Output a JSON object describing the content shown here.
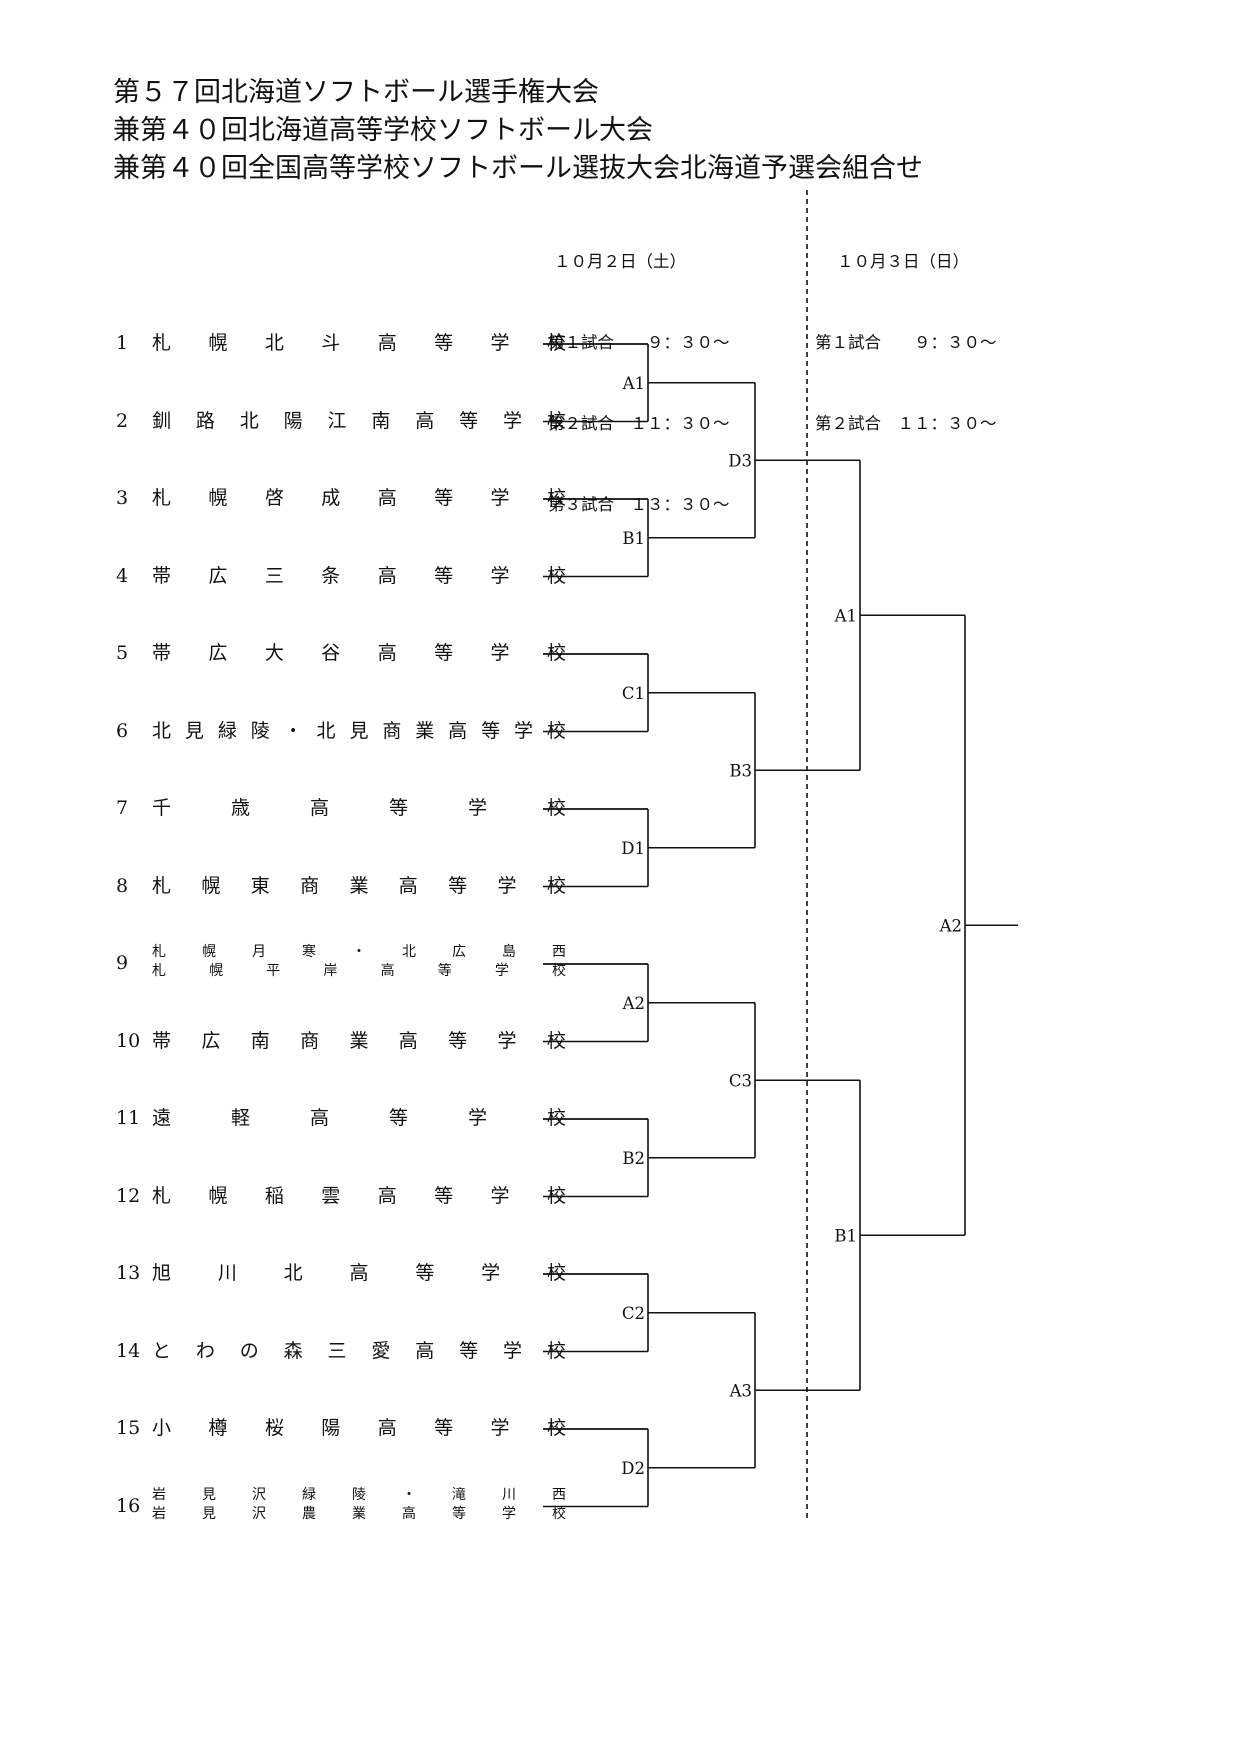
{
  "titles": [
    "第５７回北海道ソフトボール選手権大会",
    "兼第４０回北海道高等学校ソフトボール大会",
    "兼第４０回全国高等学校ソフトボール選抜大会北海道予選会組合せ"
  ],
  "schedule": {
    "day1": {
      "date": "１０月２日（土）",
      "games": [
        "第１試合　　９：３０〜",
        "第２試合　１１：３０〜",
        "第３試合　１３：３０〜"
      ]
    },
    "day2": {
      "date": "１０月３日（日）",
      "games": [
        "第１試合　　９：３０〜",
        "第２試合　１１：３０〜"
      ]
    }
  },
  "teams": [
    {
      "no": "1",
      "name": "札幌北斗高等学校"
    },
    {
      "no": "2",
      "name": "釧路北陽江南高等学校"
    },
    {
      "no": "3",
      "name": "札幌啓成高等学校"
    },
    {
      "no": "4",
      "name": "帯広三条高等学校"
    },
    {
      "no": "5",
      "name": "帯広大谷高等学校"
    },
    {
      "no": "6",
      "name": "北見緑陵・北見商業高等学校"
    },
    {
      "no": "7",
      "name": "千歳高等学校"
    },
    {
      "no": "8",
      "name": "札幌東商業高等学校"
    },
    {
      "no": "9",
      "name_lines": [
        "札幌月寒・北広島西",
        "札幌平岸高等学校"
      ]
    },
    {
      "no": "10",
      "name": "帯広南商業高等学校"
    },
    {
      "no": "11",
      "name": "遠軽高等学校"
    },
    {
      "no": "12",
      "name": "札幌稲雲高等学校"
    },
    {
      "no": "13",
      "name": "旭川北高等学校"
    },
    {
      "no": "14",
      "name": "とわの森三愛高等学校"
    },
    {
      "no": "15",
      "name": "小樽桜陽高等学校"
    },
    {
      "no": "16",
      "name_lines": [
        "岩見沢緑陵・滝川西",
        "岩見沢農業高等学校"
      ]
    }
  ],
  "matches": {
    "round1": [
      "A1",
      "B1",
      "C1",
      "D1",
      "A2",
      "B2",
      "C2",
      "D2"
    ],
    "round2": [
      "D3",
      "B3",
      "C3",
      "A3"
    ],
    "round3": [
      "A1",
      "B1"
    ],
    "final": "A2"
  }
}
